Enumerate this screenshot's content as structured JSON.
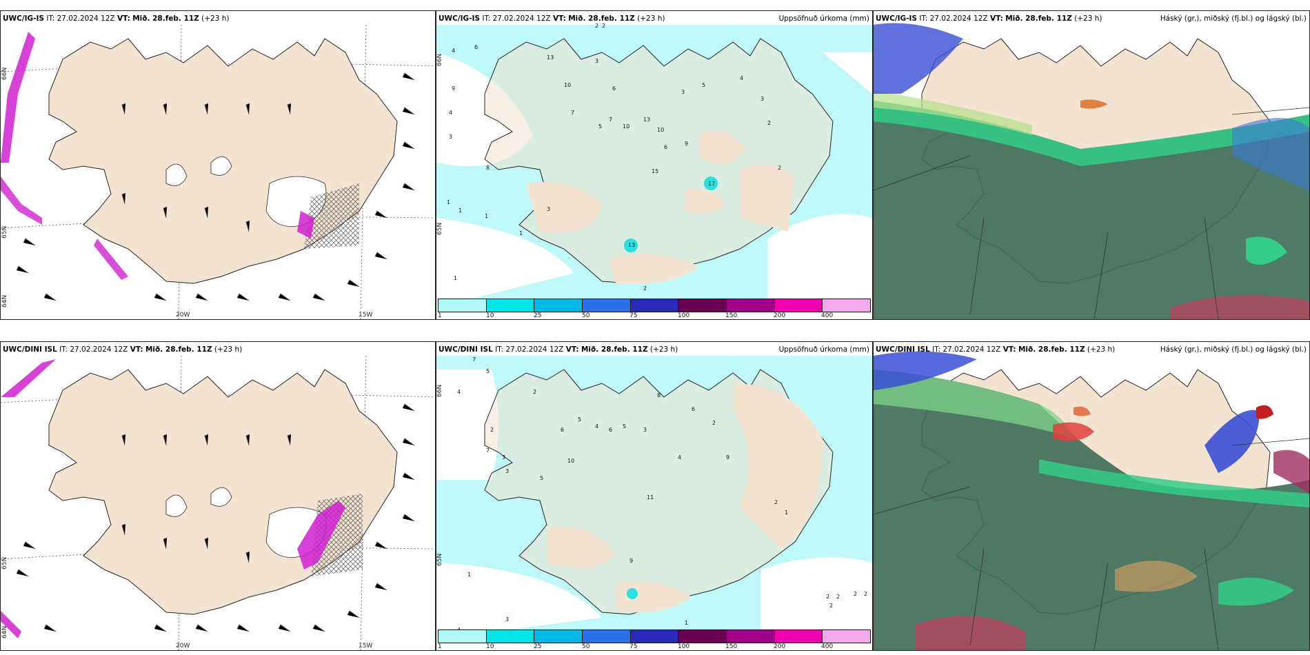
{
  "panels": {
    "top": {
      "wind": {
        "model": "UWC/IG-IS",
        "it": "IT: 27.02.2024 12Z",
        "vt_label": "VT:",
        "vt": "Mið. 28.feb. 11Z",
        "lead": "(+23 h)"
      },
      "precip": {
        "model": "UWC/IG-IS",
        "it": "IT: 27.02.2024 12Z",
        "vt_label": "VT:",
        "vt": "Mið. 28.feb. 11Z",
        "lead": "(+23 h)",
        "right": "Uppsöfnuð úrkoma (mm)"
      },
      "cloud": {
        "model": "UWC/IG-IS",
        "it": "IT: 27.02.2024 12Z",
        "vt_label": "VT:",
        "vt": "Mið. 28.feb. 11Z",
        "lead": "(+23 h)",
        "right": "Háský (gr.), miðský (fj.bl.) og lágský (bl.)"
      }
    },
    "bottom": {
      "wind": {
        "model": "UWC/DINI ISL",
        "it": "IT: 27.02.2024 12Z",
        "vt_label": "VT:",
        "vt": "Mið. 28.feb. 11Z",
        "lead": "(+23 h)"
      },
      "precip": {
        "model": "UWC/DINI ISL",
        "it": "IT: 27.02.2024 12Z",
        "vt_label": "VT:",
        "vt": "Mið. 28.feb. 11Z",
        "lead": "(+23 h)",
        "right": "Uppsöfnuð úrkoma (mm)"
      },
      "cloud": {
        "model": "UWC/DINI ISL",
        "it": "IT: 27.02.2024 12Z",
        "vt_label": "VT:",
        "vt": "Mið. 28.feb. 11Z",
        "lead": "(+23 h)",
        "right": "Háský (gr.), miðský (fj.bl.) og lágský (bl.)"
      }
    }
  },
  "axis": {
    "lon_20w": "20W",
    "lon_15w": "15W",
    "lat_66n": "66N",
    "lat_65n": "65N",
    "lat_64n": "64N"
  },
  "colorbar": {
    "labels": [
      "1",
      "10",
      "25",
      "50",
      "75",
      "100",
      "150",
      "200",
      "400"
    ],
    "colors": [
      "#b4f7f7",
      "#00e5e8",
      "#00b8e6",
      "#2a6ee8",
      "#2a2ab8",
      "#6a0050",
      "#a0008a",
      "#f000b0",
      "#f4a8f0"
    ]
  },
  "precip_values_top": [
    "2",
    "2",
    "4",
    "6",
    "9",
    "4",
    "3",
    "8",
    "13",
    "10",
    "7",
    "3",
    "6",
    "7",
    "5",
    "10",
    "13",
    "10",
    "6",
    "3",
    "5",
    "4",
    "3",
    "2",
    "1",
    "1",
    "1",
    "13",
    "17",
    "15",
    "9",
    "2",
    "3",
    "1",
    "2",
    "1"
  ],
  "precip_values_bottom": [
    "7",
    "4",
    "5",
    "2",
    "3",
    "3",
    "2",
    "6",
    "5",
    "4",
    "6",
    "5",
    "3",
    "10",
    "8",
    "6",
    "2",
    "7",
    "5",
    "4",
    "9",
    "11",
    "9",
    "2",
    "1",
    "1",
    "2",
    "2",
    "2",
    "2",
    "2",
    "1",
    "3",
    "4"
  ],
  "colors": {
    "land": "#f3e4d2",
    "sea": "#ffffff",
    "coast": "#222222",
    "precip_light": "#b4f7f7",
    "precip_mid": "#2ae0e0",
    "cloud_dark": "#3d6b58",
    "cloud_green": "#33cc88",
    "cloud_blue": "#3a4fd6",
    "cloud_red": "#e04040",
    "wind_magenta": "#d020d0"
  }
}
